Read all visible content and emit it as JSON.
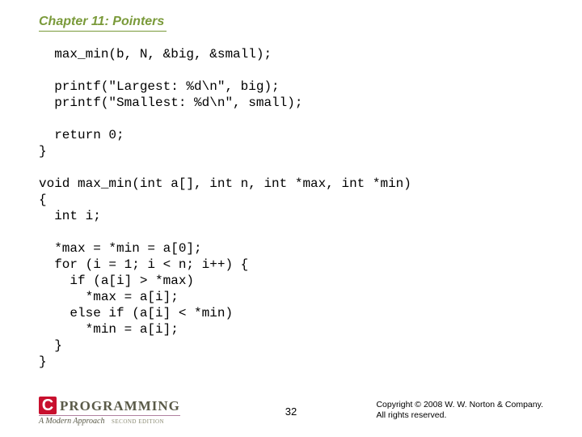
{
  "header": {
    "chapter_title": "Chapter 11: Pointers"
  },
  "code": {
    "lines": [
      "  max_min(b, N, &big, &small);",
      "",
      "  printf(\"Largest: %d\\n\", big);",
      "  printf(\"Smallest: %d\\n\", small);",
      "",
      "  return 0;",
      "}",
      "",
      "void max_min(int a[], int n, int *max, int *min)",
      "{",
      "  int i;",
      "",
      "  *max = *min = a[0];",
      "  for (i = 1; i < n; i++) {",
      "    if (a[i] > *max)",
      "      *max = a[i];",
      "    else if (a[i] < *min)",
      "      *min = a[i];",
      "  }",
      "}"
    ]
  },
  "footer": {
    "logo_c": "C",
    "logo_word": "PROGRAMMING",
    "logo_sub": "A Modern Approach",
    "logo_edition": "SECOND EDITION",
    "page_number": "32",
    "copyright_line1": "Copyright © 2008 W. W. Norton & Company.",
    "copyright_line2": "All rights reserved."
  },
  "style": {
    "accent_color": "#7a9a3a",
    "logo_red": "#c8102e",
    "text_color": "#000000",
    "code_font": "Courier New"
  }
}
